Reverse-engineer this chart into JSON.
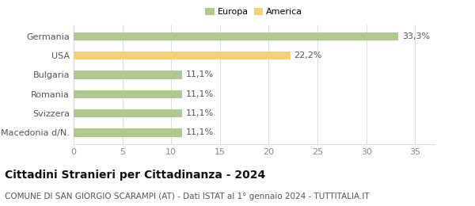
{
  "categories": [
    "Macedonia d/N.",
    "Svizzera",
    "Romania",
    "Bulgaria",
    "USA",
    "Germania"
  ],
  "values": [
    11.1,
    11.1,
    11.1,
    11.1,
    22.2,
    33.3
  ],
  "labels": [
    "11,1%",
    "11,1%",
    "11,1%",
    "11,1%",
    "22,2%",
    "33,3%"
  ],
  "bar_colors": [
    "#adc990",
    "#adc990",
    "#adc990",
    "#adc990",
    "#f5d175",
    "#adc990"
  ],
  "legend_items": [
    {
      "label": "Europa",
      "color": "#adc990"
    },
    {
      "label": "America",
      "color": "#f5d175"
    }
  ],
  "xlim": [
    0,
    37
  ],
  "xticks": [
    0,
    5,
    10,
    15,
    20,
    25,
    30,
    35
  ],
  "title": "Cittadini Stranieri per Cittadinanza - 2024",
  "subtitle": "COMUNE DI SAN GIORGIO SCARAMPI (AT) - Dati ISTAT al 1° gennaio 2024 - TUTTITALIA.IT",
  "bar_height": 0.42,
  "background_color": "#ffffff",
  "grid_color": "#dddddd",
  "label_fontsize": 8,
  "tick_fontsize": 8,
  "title_fontsize": 10,
  "subtitle_fontsize": 7.5
}
